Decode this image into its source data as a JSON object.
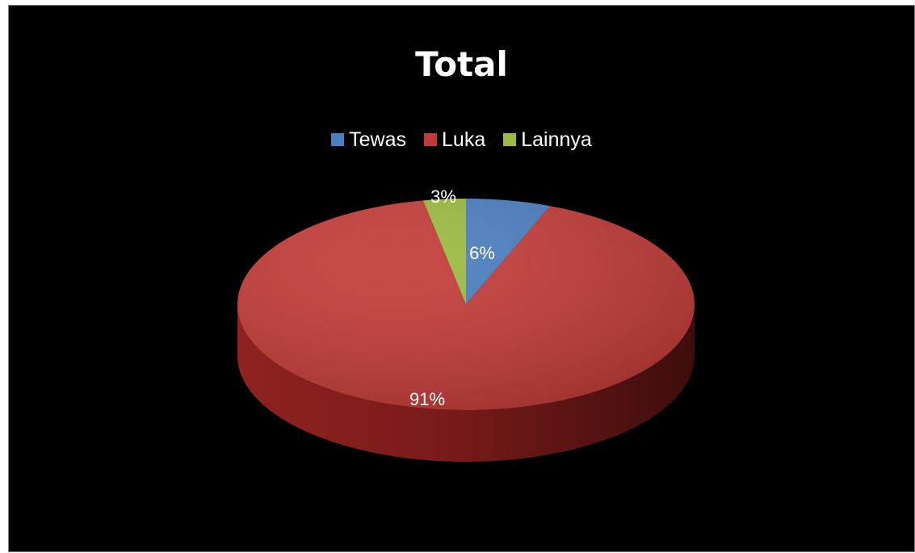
{
  "chart_data": {
    "type": "pie",
    "title": "Total",
    "legend_position": "top",
    "labels": [
      "Tewas",
      "Luka",
      "Lainnya"
    ],
    "values": [
      6,
      91,
      3
    ],
    "data_labels": [
      "6%",
      "91%",
      "3%"
    ],
    "colors": [
      "#4a7ec0",
      "#c23b38",
      "#9bbb40"
    ],
    "background": "#000000"
  }
}
